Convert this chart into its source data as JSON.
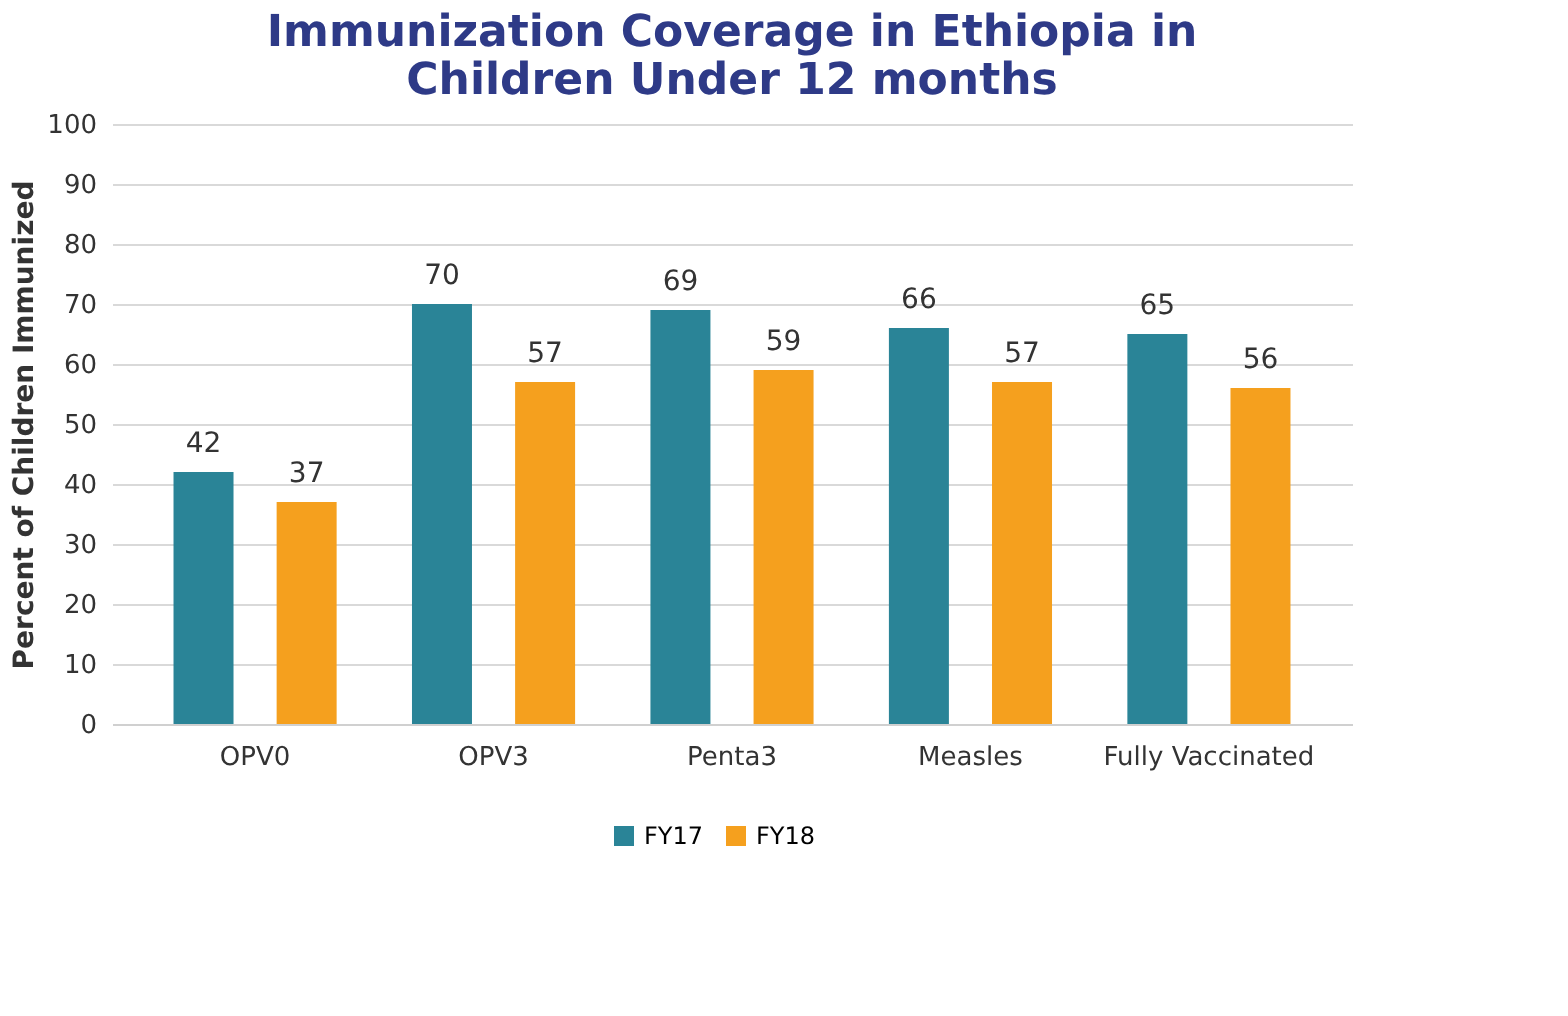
{
  "chart_data": {
    "type": "bar",
    "title": "Immunization Coverage in Ethiopia in Children Under 12 months",
    "ylabel": "Percent of Children Immunized",
    "categories": [
      "OPV0",
      "OPV3",
      "Penta3",
      "Measles",
      "Fully Vaccinated"
    ],
    "series": [
      {
        "name": "FY17",
        "color": "#2a8497",
        "values": [
          42,
          70,
          69,
          66,
          65
        ]
      },
      {
        "name": "FY18",
        "color": "#f5a01e",
        "values": [
          37,
          57,
          59,
          57,
          56
        ]
      }
    ],
    "ylim": [
      0,
      100
    ],
    "yticks": [
      0,
      10,
      20,
      30,
      40,
      50,
      60,
      70,
      80,
      90,
      100
    ],
    "grid": "y",
    "legend": "bottom",
    "data_labels": true
  }
}
